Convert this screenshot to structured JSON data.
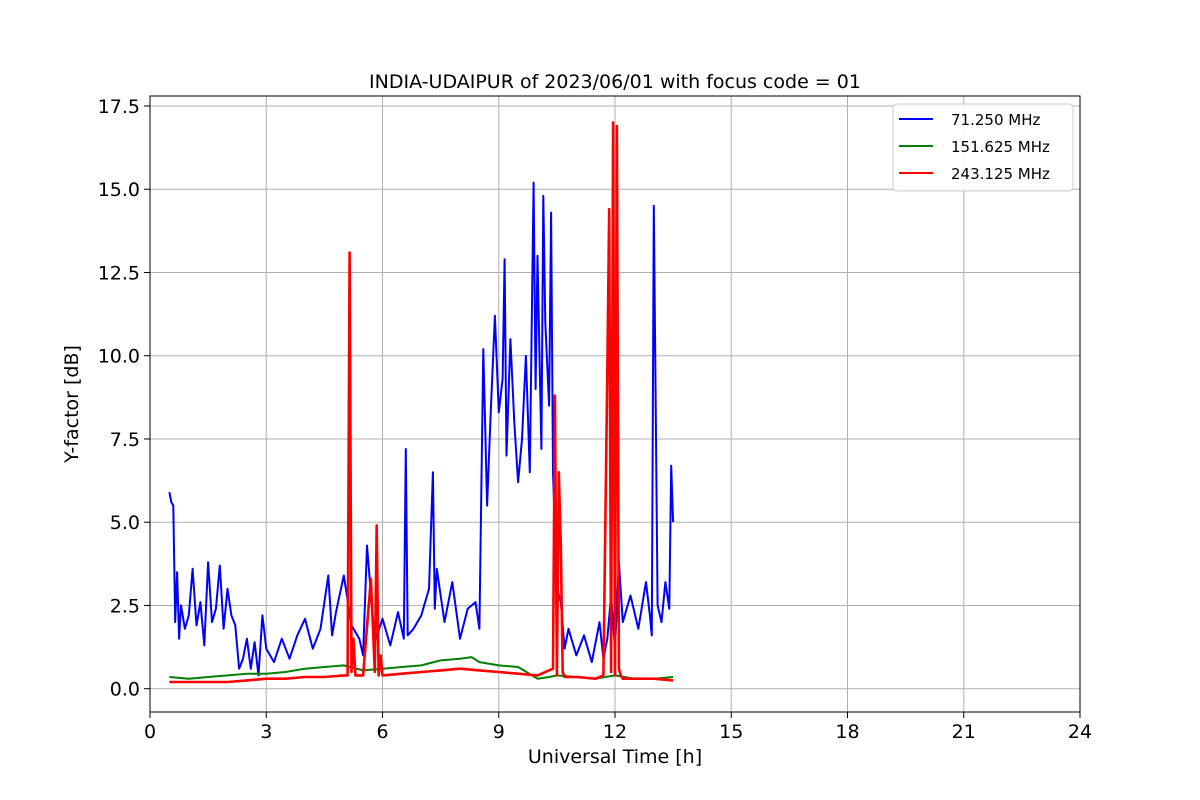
{
  "chart_data": {
    "type": "line",
    "title": "INDIA-UDAIPUR of 2023/06/01 with focus code = 01",
    "xlabel": "Universal Time [h]",
    "ylabel": "Y-factor [dB]",
    "xlim": [
      0,
      24
    ],
    "ylim": [
      -0.7,
      17.8
    ],
    "xticks": [
      0,
      3,
      6,
      9,
      12,
      15,
      18,
      21,
      24
    ],
    "xtick_labels": [
      "0",
      "3",
      "6",
      "9",
      "12",
      "15",
      "18",
      "21",
      "24"
    ],
    "yticks": [
      0.0,
      2.5,
      5.0,
      7.5,
      10.0,
      12.5,
      15.0,
      17.5
    ],
    "ytick_labels": [
      "0.0",
      "2.5",
      "5.0",
      "7.5",
      "10.0",
      "12.5",
      "15.0",
      "17.5"
    ],
    "grid": true,
    "legend_position": "top-right",
    "series": [
      {
        "name": " 71.250 MHz",
        "color": "#0000ff",
        "x": [
          0.5,
          0.55,
          0.6,
          0.65,
          0.7,
          0.75,
          0.8,
          0.9,
          1.0,
          1.1,
          1.2,
          1.3,
          1.4,
          1.5,
          1.6,
          1.7,
          1.8,
          1.9,
          2.0,
          2.1,
          2.2,
          2.3,
          2.4,
          2.5,
          2.6,
          2.7,
          2.8,
          2.9,
          3.0,
          3.2,
          3.4,
          3.6,
          3.8,
          4.0,
          4.2,
          4.4,
          4.6,
          4.7,
          4.8,
          5.0,
          5.2,
          5.4,
          5.5,
          5.6,
          5.8,
          6.0,
          6.2,
          6.4,
          6.55,
          6.6,
          6.65,
          6.8,
          7.0,
          7.2,
          7.3,
          7.35,
          7.4,
          7.6,
          7.8,
          8.0,
          8.2,
          8.4,
          8.5,
          8.6,
          8.7,
          8.8,
          8.9,
          9.0,
          9.1,
          9.15,
          9.2,
          9.3,
          9.4,
          9.5,
          9.6,
          9.7,
          9.8,
          9.9,
          9.95,
          10.0,
          10.1,
          10.15,
          10.2,
          10.3,
          10.35,
          10.4,
          10.5,
          10.6,
          10.7,
          10.8,
          11.0,
          11.2,
          11.4,
          11.6,
          11.7,
          11.8,
          11.9,
          12.0,
          12.1,
          12.2,
          12.4,
          12.6,
          12.8,
          12.9,
          12.95,
          13.0,
          13.1,
          13.2,
          13.3,
          13.4,
          13.45,
          13.5
        ],
        "y": [
          5.9,
          5.6,
          5.5,
          2.0,
          3.5,
          1.5,
          2.5,
          1.8,
          2.2,
          3.6,
          1.9,
          2.6,
          1.3,
          3.8,
          2.0,
          2.4,
          3.7,
          1.8,
          3.0,
          2.2,
          1.9,
          0.6,
          0.9,
          1.5,
          0.6,
          1.4,
          0.4,
          2.2,
          1.2,
          0.8,
          1.5,
          0.9,
          1.6,
          2.1,
          1.2,
          1.8,
          3.4,
          1.6,
          2.3,
          3.4,
          1.9,
          1.5,
          1.0,
          4.3,
          1.4,
          2.1,
          1.3,
          2.3,
          1.5,
          7.2,
          1.6,
          1.8,
          2.2,
          3.0,
          6.5,
          2.4,
          3.6,
          2.0,
          3.2,
          1.5,
          2.4,
          2.6,
          1.8,
          10.2,
          5.5,
          8.5,
          11.2,
          8.3,
          9.3,
          12.9,
          7.0,
          10.5,
          8.0,
          6.2,
          7.5,
          10.0,
          6.5,
          15.2,
          9.0,
          13.0,
          7.2,
          14.8,
          11.0,
          8.5,
          14.3,
          6.5,
          3.0,
          2.6,
          1.2,
          1.8,
          1.0,
          1.6,
          0.8,
          2.0,
          0.9,
          1.5,
          2.8,
          1.2,
          3.8,
          2.0,
          2.8,
          1.8,
          3.2,
          2.2,
          1.6,
          14.5,
          2.5,
          2.0,
          3.2,
          2.4,
          6.7,
          5.0
        ]
      },
      {
        "name": "151.625 MHz",
        "color": "#008000",
        "x": [
          0.5,
          1.0,
          1.5,
          2.0,
          2.5,
          3.0,
          3.5,
          4.0,
          4.5,
          5.0,
          5.5,
          6.0,
          6.5,
          7.0,
          7.5,
          8.0,
          8.3,
          8.5,
          9.0,
          9.5,
          10.0,
          10.3,
          10.5,
          11.0,
          11.5,
          12.0,
          12.5,
          13.0,
          13.5
        ],
        "y": [
          0.35,
          0.3,
          0.35,
          0.4,
          0.45,
          0.45,
          0.5,
          0.6,
          0.65,
          0.7,
          0.55,
          0.6,
          0.65,
          0.7,
          0.85,
          0.9,
          0.95,
          0.8,
          0.7,
          0.65,
          0.3,
          0.35,
          0.4,
          0.35,
          0.3,
          0.4,
          0.3,
          0.3,
          0.35
        ]
      },
      {
        "name": "243.125 MHz",
        "color": "#ff0000",
        "x": [
          0.5,
          1.0,
          1.5,
          2.0,
          2.5,
          3.0,
          3.5,
          4.0,
          4.5,
          5.0,
          5.1,
          5.15,
          5.2,
          5.25,
          5.3,
          5.5,
          5.7,
          5.8,
          5.85,
          5.9,
          5.95,
          6.0,
          6.5,
          7.0,
          7.5,
          8.0,
          8.5,
          9.0,
          9.5,
          10.0,
          10.4,
          10.45,
          10.5,
          10.55,
          10.6,
          10.65,
          10.7,
          11.0,
          11.5,
          11.7,
          11.8,
          11.85,
          11.9,
          11.95,
          12.0,
          12.05,
          12.1,
          12.15,
          12.2,
          12.5,
          13.0,
          13.5
        ],
        "y": [
          0.2,
          0.2,
          0.2,
          0.2,
          0.25,
          0.3,
          0.3,
          0.35,
          0.35,
          0.4,
          0.4,
          13.1,
          0.5,
          1.5,
          0.4,
          0.4,
          3.3,
          0.5,
          4.9,
          0.4,
          1.0,
          0.4,
          0.45,
          0.5,
          0.55,
          0.6,
          0.55,
          0.5,
          0.45,
          0.4,
          0.6,
          8.8,
          0.4,
          6.5,
          4.3,
          0.5,
          0.35,
          0.35,
          0.3,
          0.4,
          9.5,
          14.4,
          0.5,
          17.0,
          0.4,
          16.9,
          0.6,
          0.4,
          0.3,
          0.3,
          0.3,
          0.25
        ]
      }
    ]
  }
}
